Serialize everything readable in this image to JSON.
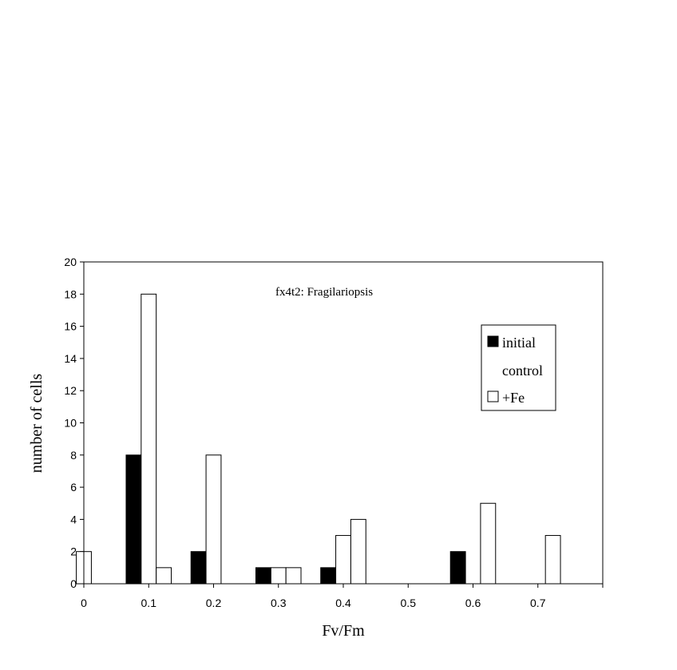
{
  "chart_data": {
    "type": "bar",
    "annotation": "fx4t2: Fragilariopsis",
    "xlabel": "Fv/Fm",
    "ylabel": "number of cells",
    "ylim": [
      0,
      20
    ],
    "yticks": [
      0,
      2,
      4,
      6,
      8,
      10,
      12,
      14,
      16,
      18,
      20
    ],
    "xlim": [
      0,
      0.8
    ],
    "xticks": [
      "0",
      "0.1",
      "0.2",
      "0.3",
      "0.4",
      "0.5",
      "0.6",
      "0.7"
    ],
    "legend_position": "right",
    "series": [
      {
        "name": "initial",
        "color": "#000000",
        "points": [
          {
            "x": 0.1,
            "y": 8
          },
          {
            "x": 0.2,
            "y": 2
          },
          {
            "x": 0.3,
            "y": 1
          },
          {
            "x": 0.4,
            "y": 1
          },
          {
            "x": 0.6,
            "y": 2
          }
        ]
      },
      {
        "name": "control",
        "color": "#ffffff",
        "points": [
          {
            "x": 0,
            "y": 2
          },
          {
            "x": 0.1,
            "y": 18
          },
          {
            "x": 0.2,
            "y": 8
          },
          {
            "x": 0.3,
            "y": 1
          },
          {
            "x": 0.4,
            "y": 3
          }
        ]
      },
      {
        "name": "+Fe",
        "color": "#ffffff",
        "points": [
          {
            "x": 0.1,
            "y": 1
          },
          {
            "x": 0.3,
            "y": 1
          },
          {
            "x": 0.4,
            "y": 4
          },
          {
            "x": 0.6,
            "y": 5
          },
          {
            "x": 0.7,
            "y": 3
          }
        ]
      }
    ]
  }
}
